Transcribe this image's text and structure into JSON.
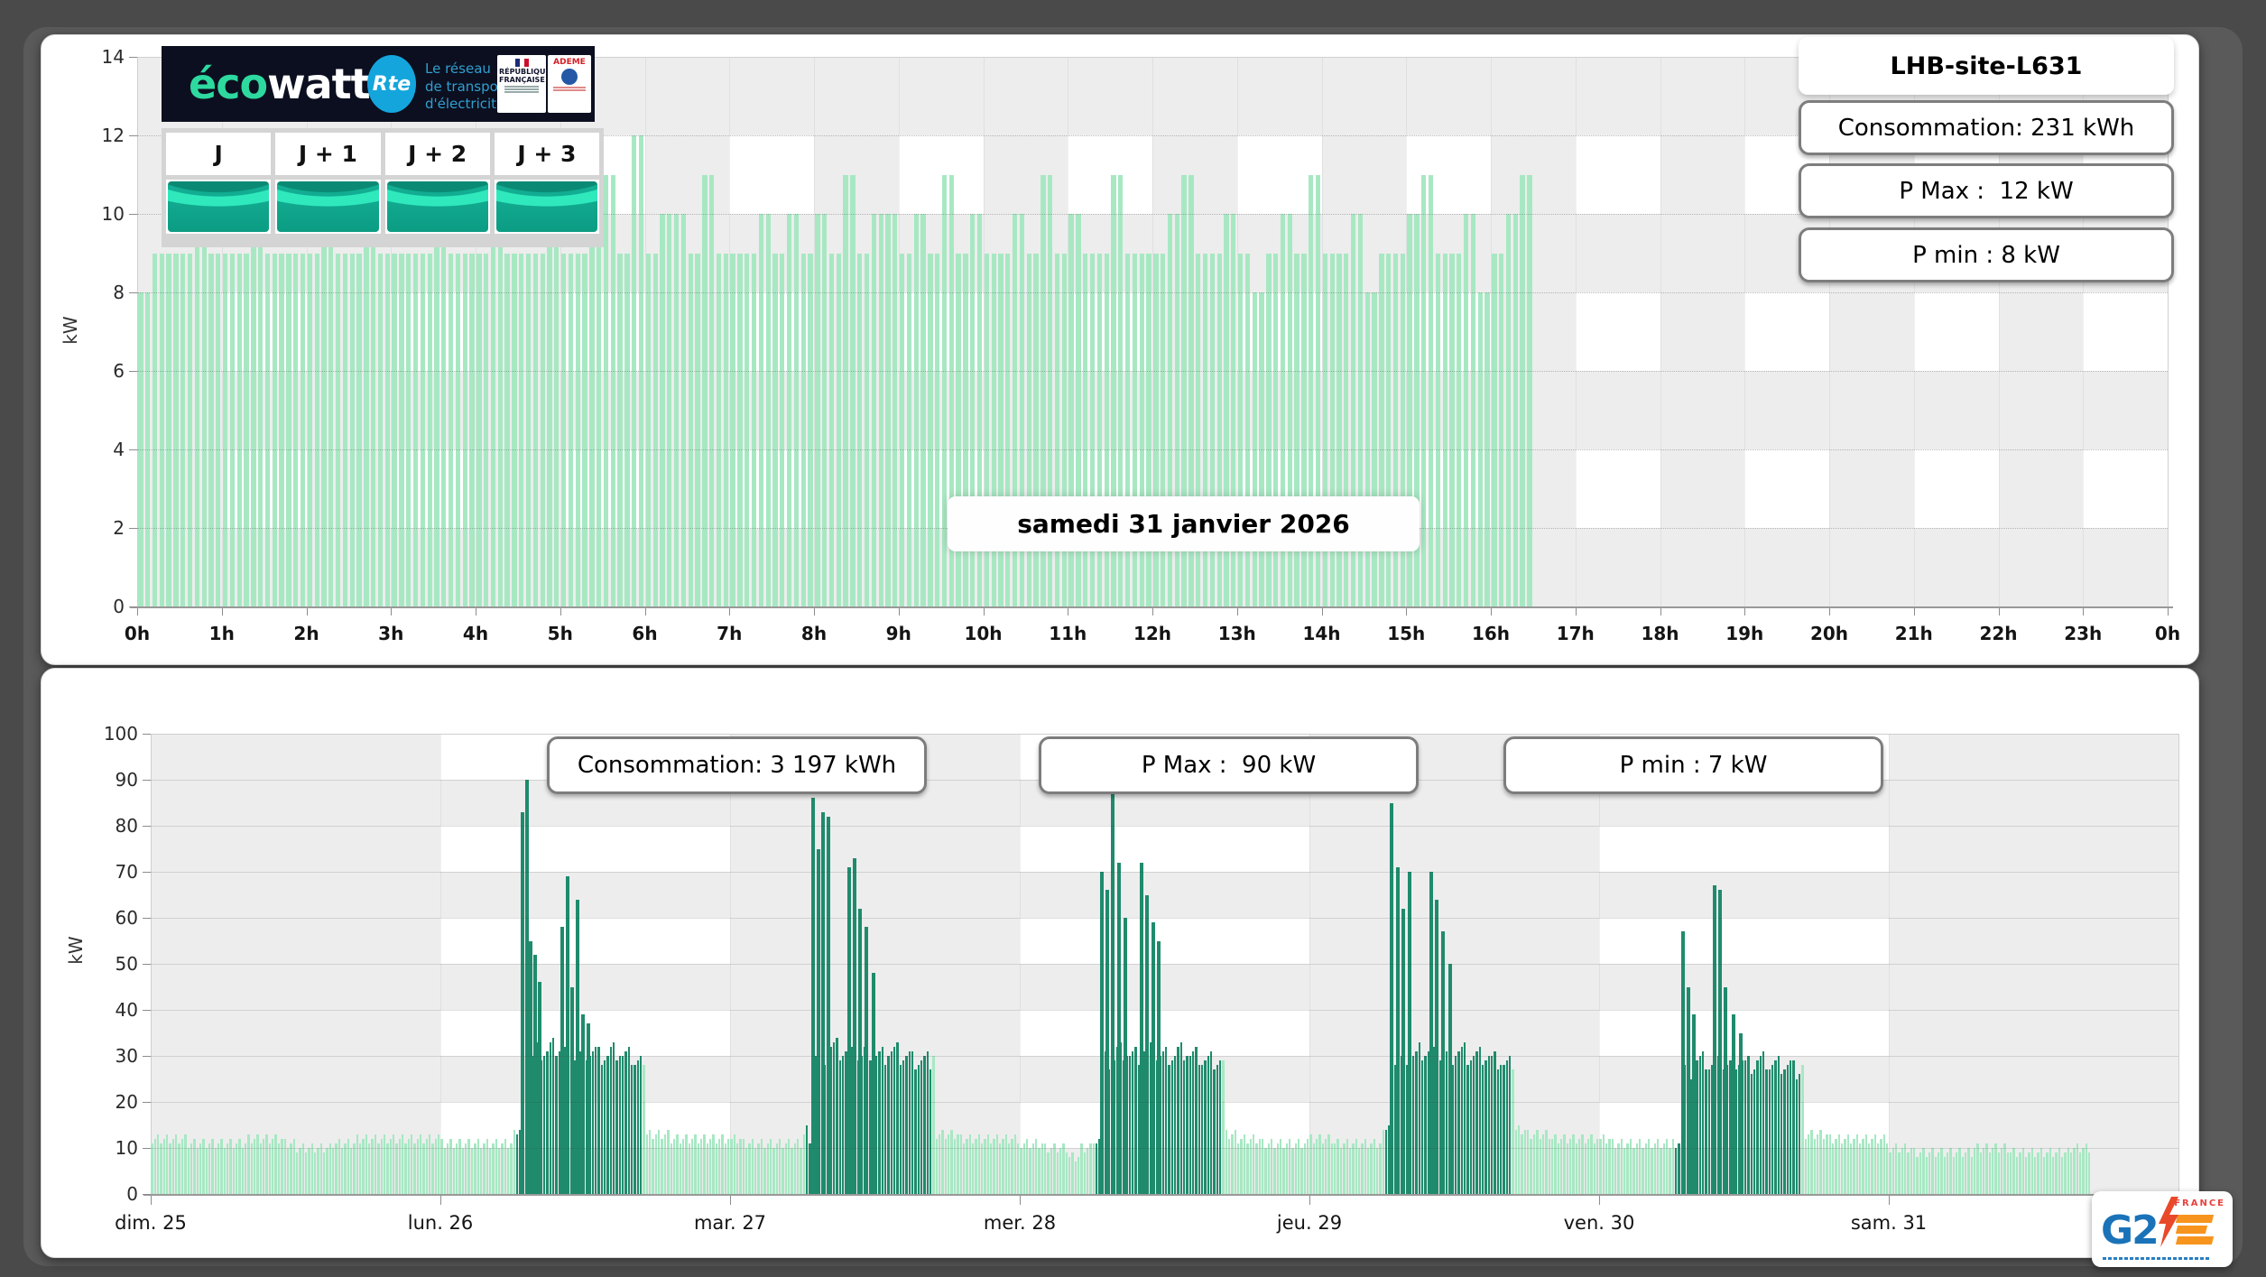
{
  "banner": {
    "eco": "éco",
    "watt": "watt",
    "rte": "Rte",
    "network_lines": [
      "Le réseau",
      "de transport",
      "d'électricité"
    ],
    "republique": [
      "RÉPUBLIQUE",
      "FRANÇAISE"
    ],
    "ademe": "ADEME"
  },
  "forecast": {
    "buttons": [
      {
        "label": "J"
      },
      {
        "label": "J + 1"
      },
      {
        "label": "J + 2"
      },
      {
        "label": "J + 3"
      }
    ]
  },
  "logo_card": {
    "g2": "G2",
    "france": "FRANCE"
  },
  "colors": {
    "mint_bar": "#a7e8c3",
    "dark_bar": "#1f8b6c",
    "checker_gray": "#ededed",
    "banner_bg": "#0c0f1f",
    "gauge_green": "#0fa287",
    "accent_blue": "#14a5dd"
  },
  "chart_data": [
    {
      "type": "bar",
      "title": "LHB-site-L631",
      "date_label": "samedi 31 janvier 2026",
      "stats": [
        "Consommation: 231 kWh",
        "P Max :  12 kW",
        "P min : 8 kW"
      ],
      "ylabel": "kW",
      "ylim": [
        0,
        14
      ],
      "y_ticks": [
        0,
        2,
        4,
        6,
        8,
        10,
        12,
        14
      ],
      "x_tick_labels": [
        "0h",
        "1h",
        "2h",
        "3h",
        "4h",
        "5h",
        "6h",
        "7h",
        "8h",
        "9h",
        "10h",
        "11h",
        "12h",
        "13h",
        "14h",
        "15h",
        "16h",
        "17h",
        "18h",
        "19h",
        "20h",
        "21h",
        "22h",
        "23h",
        "0h"
      ],
      "interval_minutes": 10,
      "values": [
        8,
        9,
        9,
        9,
        10,
        9,
        9,
        9,
        10,
        9,
        9,
        9,
        9,
        10,
        9,
        9,
        10,
        9,
        9,
        9,
        9,
        10,
        9,
        9,
        9,
        10,
        9,
        9,
        9,
        10,
        9,
        9,
        10,
        11,
        9,
        12,
        9,
        10,
        10,
        9,
        11,
        9,
        9,
        9,
        10,
        9,
        10,
        9,
        10,
        9,
        11,
        9,
        10,
        10,
        9,
        10,
        9,
        11,
        9,
        10,
        9,
        9,
        10,
        9,
        11,
        9,
        10,
        9,
        9,
        11,
        9,
        9,
        9,
        10,
        11,
        9,
        9,
        10,
        9,
        8,
        9,
        10,
        9,
        11,
        9,
        9,
        10,
        8,
        9,
        9,
        10,
        11,
        9,
        9,
        10,
        8,
        9,
        10,
        11
      ],
      "grid": true,
      "legend": "none"
    },
    {
      "type": "bar",
      "title": "",
      "stats": [
        "Consommation: 3 197 kWh",
        "P Max :  90 kW",
        "P min : 7 kW"
      ],
      "ylabel": "kW",
      "ylim": [
        0,
        100
      ],
      "y_ticks": [
        0,
        10,
        20,
        30,
        40,
        50,
        60,
        70,
        80,
        90,
        100
      ],
      "day_labels": [
        "dim. 25",
        "lun. 26",
        "mar. 27",
        "mer. 28",
        "jeu. 29",
        "ven. 30",
        "sam. 31"
      ],
      "hourly_by_day": [
        [
          12,
          12,
          12,
          11,
          11,
          11,
          11,
          11,
          12,
          12,
          12,
          11,
          10,
          10,
          10,
          11,
          11,
          12,
          12,
          12,
          12,
          12,
          12,
          12
        ],
        [
          11,
          11,
          11,
          11,
          11,
          11,
          13,
          30,
          31,
          32,
          31,
          30,
          31,
          30,
          31,
          30,
          29,
          13,
          13,
          12,
          12,
          12,
          12,
          12
        ],
        [
          12,
          11,
          11,
          11,
          11,
          11,
          13,
          30,
          32,
          31,
          30,
          31,
          30,
          31,
          30,
          29,
          29,
          13,
          13,
          12,
          12,
          12,
          12,
          12
        ],
        [
          11,
          11,
          10,
          10,
          8,
          10,
          12,
          29,
          31,
          30,
          31,
          30,
          30,
          31,
          30,
          29,
          29,
          13,
          12,
          12,
          11,
          11,
          11,
          11
        ],
        [
          12,
          12,
          11,
          11,
          11,
          11,
          13,
          29,
          30,
          31,
          30,
          30,
          31,
          30,
          30,
          29,
          28,
          14,
          13,
          13,
          12,
          12,
          12,
          12
        ],
        [
          12,
          11,
          11,
          11,
          11,
          11,
          12,
          27,
          29,
          28,
          28,
          29,
          28,
          29,
          28,
          28,
          27,
          13,
          13,
          12,
          12,
          12,
          12,
          12
        ],
        [
          10,
          10,
          9,
          9,
          9,
          9,
          9,
          10,
          10,
          10,
          9,
          9,
          9,
          9,
          9,
          10,
          10
        ]
      ],
      "surge_windows": [
        null,
        [
          0.262,
          0.7
        ],
        [
          0.262,
          0.7
        ],
        [
          0.262,
          0.7
        ],
        [
          0.262,
          0.7
        ],
        [
          0.262,
          0.7
        ],
        null
      ],
      "spikes_by_day": [
        [],
        [
          [
            0.283,
            83
          ],
          [
            0.298,
            90
          ],
          [
            0.312,
            55
          ],
          [
            0.327,
            52
          ],
          [
            0.342,
            46
          ],
          [
            0.42,
            58
          ],
          [
            0.438,
            69
          ],
          [
            0.455,
            45
          ],
          [
            0.472,
            64
          ],
          [
            0.492,
            39
          ],
          [
            0.512,
            37
          ]
        ],
        [
          [
            0.288,
            86
          ],
          [
            0.306,
            75
          ],
          [
            0.322,
            83
          ],
          [
            0.34,
            82
          ],
          [
            0.412,
            71
          ],
          [
            0.43,
            73
          ],
          [
            0.45,
            62
          ],
          [
            0.47,
            58
          ],
          [
            0.495,
            48
          ]
        ],
        [
          [
            0.285,
            70
          ],
          [
            0.303,
            66
          ],
          [
            0.322,
            88
          ],
          [
            0.342,
            72
          ],
          [
            0.365,
            60
          ],
          [
            0.42,
            72
          ],
          [
            0.44,
            65
          ],
          [
            0.462,
            59
          ],
          [
            0.48,
            55
          ]
        ],
        [
          [
            0.285,
            85
          ],
          [
            0.305,
            71
          ],
          [
            0.325,
            62
          ],
          [
            0.345,
            70
          ],
          [
            0.42,
            70
          ],
          [
            0.44,
            64
          ],
          [
            0.462,
            57
          ],
          [
            0.485,
            50
          ]
        ],
        [
          [
            0.29,
            57
          ],
          [
            0.308,
            45
          ],
          [
            0.328,
            39
          ],
          [
            0.398,
            67
          ],
          [
            0.416,
            66
          ],
          [
            0.436,
            45
          ],
          [
            0.465,
            39
          ],
          [
            0.49,
            35
          ]
        ],
        []
      ],
      "cutoff_by_day": [
        1,
        1,
        1,
        1,
        1,
        1,
        0.695
      ],
      "grid": true,
      "legend": "none"
    }
  ]
}
